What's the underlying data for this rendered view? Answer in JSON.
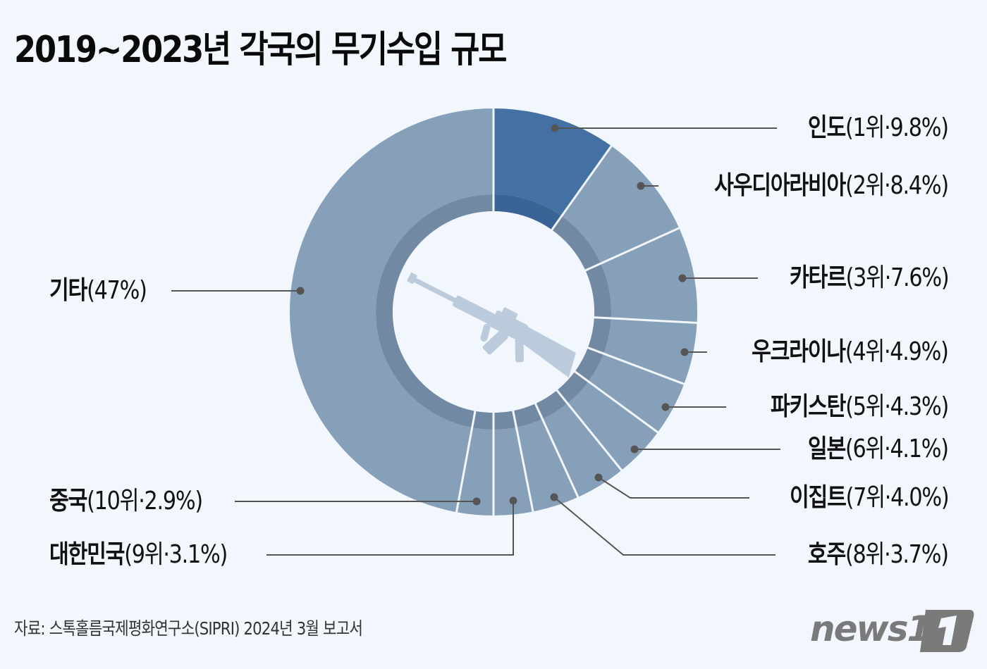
{
  "header": {
    "title": "2019~2023년 각국의 무기수입 규모"
  },
  "footer": {
    "source": "자료: 스톡홀름국제평화연구소(SIPRI) 2024년 3월 보고서",
    "logo_text": "news1",
    "logo_icon": "news1-logo-icon"
  },
  "style": {
    "background": "#f2f7fd",
    "highlight_color": "#4471a4",
    "highlight_band_color": "#3a6396",
    "slice_color": "#87a0b9",
    "band_color": "#7289a3",
    "separator_color": "#f2f7fd",
    "leader_color": "#555555",
    "center_icon_color": "#bccbdb",
    "center_icon": "rifle-icon"
  },
  "labels": [
    {
      "name": "인도",
      "detail": "(1위·9.8%)"
    },
    {
      "name": "사우디아라비아",
      "detail": "(2위·8.4%)"
    },
    {
      "name": "카타르",
      "detail": "(3위·7.6%)"
    },
    {
      "name": "우크라이나",
      "detail": "(4위·4.9%)"
    },
    {
      "name": "파키스탄",
      "detail": "(5위·4.3%)"
    },
    {
      "name": "일본",
      "detail": "(6위·4.1%)"
    },
    {
      "name": "이집트",
      "detail": "(7위·4.0%)"
    },
    {
      "name": "호주",
      "detail": "(8위·3.7%)"
    },
    {
      "name": "대한민국",
      "detail": "(9위·3.1%)"
    },
    {
      "name": "중국",
      "detail": "(10위·2.9%)"
    },
    {
      "name": "기타",
      "detail": "(47%)"
    }
  ],
  "chart_data": {
    "type": "pie",
    "subtype": "donut",
    "title": "2019~2023년 각국의 무기수입 규모",
    "unit": "% of global arms imports",
    "start_angle": "12 o'clock, clockwise",
    "categories": [
      "인도",
      "사우디아라비아",
      "카타르",
      "우크라이나",
      "파키스탄",
      "일본",
      "이집트",
      "호주",
      "대한민국",
      "중국",
      "기타"
    ],
    "ranks": [
      1,
      2,
      3,
      4,
      5,
      6,
      7,
      8,
      9,
      10,
      null
    ],
    "values": [
      9.8,
      8.4,
      7.6,
      4.9,
      4.3,
      4.1,
      4.0,
      3.7,
      3.1,
      2.9,
      47
    ],
    "highlighted": "인도",
    "source": "자료: 스톡홀름국제평화연구소(SIPRI) 2024년 3월 보고서"
  }
}
